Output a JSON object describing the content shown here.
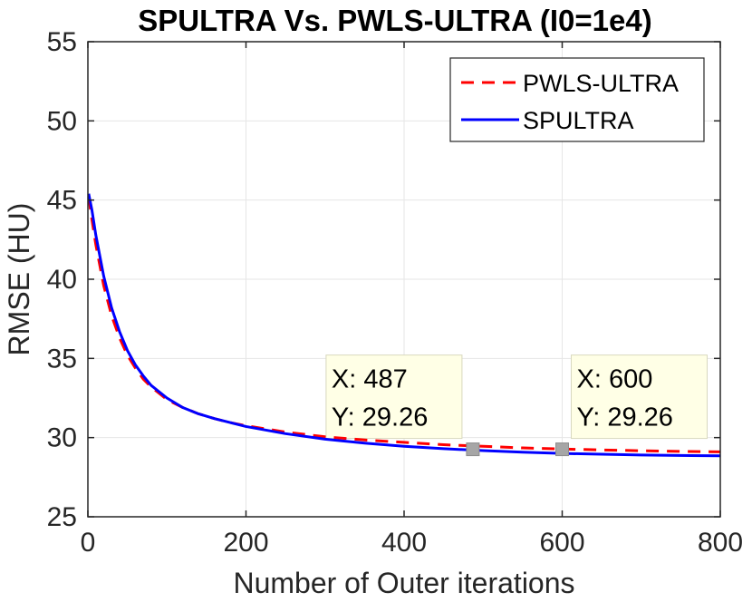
{
  "chart_data": {
    "type": "line",
    "title": "SPULTRA Vs. PWLS-ULTRA (I0=1e4)",
    "xlabel": "Number of Outer iterations",
    "ylabel": "RMSE (HU)",
    "xlim": [
      0,
      800
    ],
    "ylim": [
      25,
      55
    ],
    "xticks": [
      0,
      200,
      400,
      600,
      800
    ],
    "yticks": [
      25,
      30,
      35,
      40,
      45,
      50,
      55
    ],
    "grid": true,
    "legend_position": "top-right",
    "series": [
      {
        "name": "PWLS-ULTRA",
        "color": "#ff0000",
        "style": "dashed",
        "x": [
          1,
          5,
          10,
          20,
          30,
          40,
          50,
          60,
          70,
          80,
          90,
          100,
          120,
          140,
          160,
          180,
          200,
          250,
          300,
          350,
          400,
          450,
          500,
          550,
          600,
          650,
          700,
          750,
          800
        ],
        "y": [
          45.2,
          43.8,
          42.2,
          39.6,
          37.7,
          36.3,
          35.2,
          34.4,
          33.7,
          33.2,
          32.8,
          32.4,
          31.9,
          31.5,
          31.2,
          30.95,
          30.75,
          30.35,
          30.05,
          29.85,
          29.7,
          29.55,
          29.45,
          29.35,
          29.28,
          29.22,
          29.17,
          29.13,
          29.1
        ]
      },
      {
        "name": "SPULTRA",
        "color": "#0000ff",
        "style": "solid",
        "x": [
          1,
          5,
          10,
          20,
          30,
          40,
          50,
          60,
          70,
          80,
          90,
          100,
          120,
          140,
          160,
          180,
          200,
          250,
          300,
          350,
          400,
          450,
          500,
          550,
          600,
          650,
          700,
          750,
          800
        ],
        "y": [
          45.4,
          44.4,
          42.8,
          40.2,
          38.2,
          36.7,
          35.5,
          34.6,
          33.9,
          33.3,
          32.9,
          32.5,
          31.9,
          31.5,
          31.2,
          30.95,
          30.7,
          30.25,
          29.9,
          29.65,
          29.45,
          29.3,
          29.18,
          29.08,
          29.0,
          28.95,
          28.9,
          28.87,
          28.85
        ]
      }
    ],
    "datatips": [
      {
        "x_label": "X: 487",
        "y_label": "Y: 29.26",
        "x": 487,
        "y": 29.26
      },
      {
        "x_label": "X: 600",
        "y_label": "Y: 29.26",
        "x": 600,
        "y": 29.26
      }
    ]
  },
  "colors": {
    "grid": "#e6e6e6",
    "axis": "#262626",
    "datatip_bg": "#ffffe6",
    "datatip_border": "#d8d8bf",
    "marker": "#a6a6a6"
  }
}
